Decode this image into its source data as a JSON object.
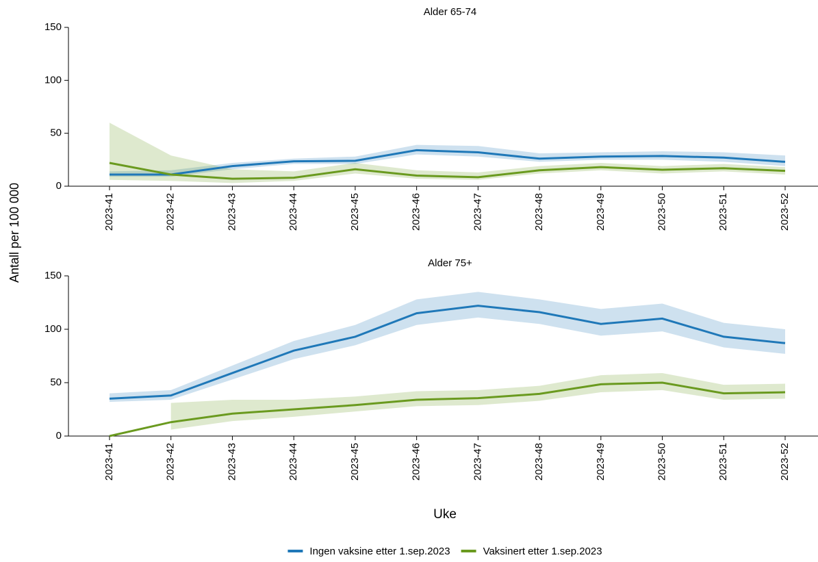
{
  "ylabel": "Antall per 100 000",
  "xlabel": "Uke",
  "chart_data": [
    {
      "type": "line",
      "title": "Alder 65-74",
      "categories": [
        "2023-41",
        "2023-42",
        "2023-43",
        "2023-44",
        "2023-45",
        "2023-46",
        "2023-47",
        "2023-48",
        "2023-49",
        "2023-50",
        "2023-51",
        "2023-52"
      ],
      "ylim": [
        0,
        150
      ],
      "yticks": [
        0,
        50,
        100,
        150
      ],
      "series": [
        {
          "name": "Ingen vaksine etter 1.sep.2023",
          "color": "#1f78b8",
          "values": [
            11,
            11,
            19,
            23.5,
            24,
            34,
            32,
            26,
            28,
            28.5,
            27,
            23
          ],
          "lower": [
            9,
            9,
            16,
            21,
            21,
            30,
            28,
            23,
            25,
            25,
            23,
            19
          ],
          "upper": [
            14,
            15,
            22,
            26,
            28,
            39,
            38,
            31,
            32,
            33,
            32,
            29
          ]
        },
        {
          "name": "Vaksinert etter 1.sep.2023",
          "color": "#6a9a1f",
          "values": [
            22,
            11,
            7,
            8,
            16,
            10,
            8.5,
            15,
            18,
            15.5,
            17,
            14.5
          ],
          "lower": [
            6,
            5,
            3,
            5,
            12,
            7,
            6,
            12,
            15,
            12,
            14,
            11
          ],
          "upper": [
            60,
            29,
            16,
            14,
            22,
            15,
            13,
            19,
            22,
            19,
            21,
            18
          ]
        }
      ]
    },
    {
      "type": "line",
      "title": "Alder 75+",
      "categories": [
        "2023-41",
        "2023-42",
        "2023-43",
        "2023-44",
        "2023-45",
        "2023-46",
        "2023-47",
        "2023-48",
        "2023-49",
        "2023-50",
        "2023-51",
        "2023-52"
      ],
      "ylim": [
        0,
        150
      ],
      "yticks": [
        0,
        50,
        100,
        150
      ],
      "series": [
        {
          "name": "Ingen vaksine etter 1.sep.2023",
          "color": "#1f78b8",
          "values": [
            35,
            38,
            59,
            80,
            93,
            115,
            122,
            116,
            105,
            110,
            93,
            87
          ],
          "lower": [
            32,
            34,
            53,
            72,
            85,
            104,
            111,
            105,
            94,
            98,
            83,
            77
          ],
          "upper": [
            40,
            43,
            66,
            89,
            104,
            128,
            135,
            128,
            119,
            124,
            106,
            100
          ]
        },
        {
          "name": "Vaksinert etter 1.sep.2023",
          "color": "#6a9a1f",
          "values": [
            0,
            13,
            21,
            25,
            29,
            34,
            35.5,
            39.5,
            48.5,
            50,
            40,
            41
          ],
          "lower": [
            null,
            6,
            14,
            18,
            23,
            28,
            29,
            33,
            41,
            43,
            34,
            35
          ],
          "upper": [
            null,
            31,
            34,
            34,
            37,
            42,
            43,
            47,
            57,
            59,
            48,
            49
          ]
        }
      ]
    }
  ]
}
